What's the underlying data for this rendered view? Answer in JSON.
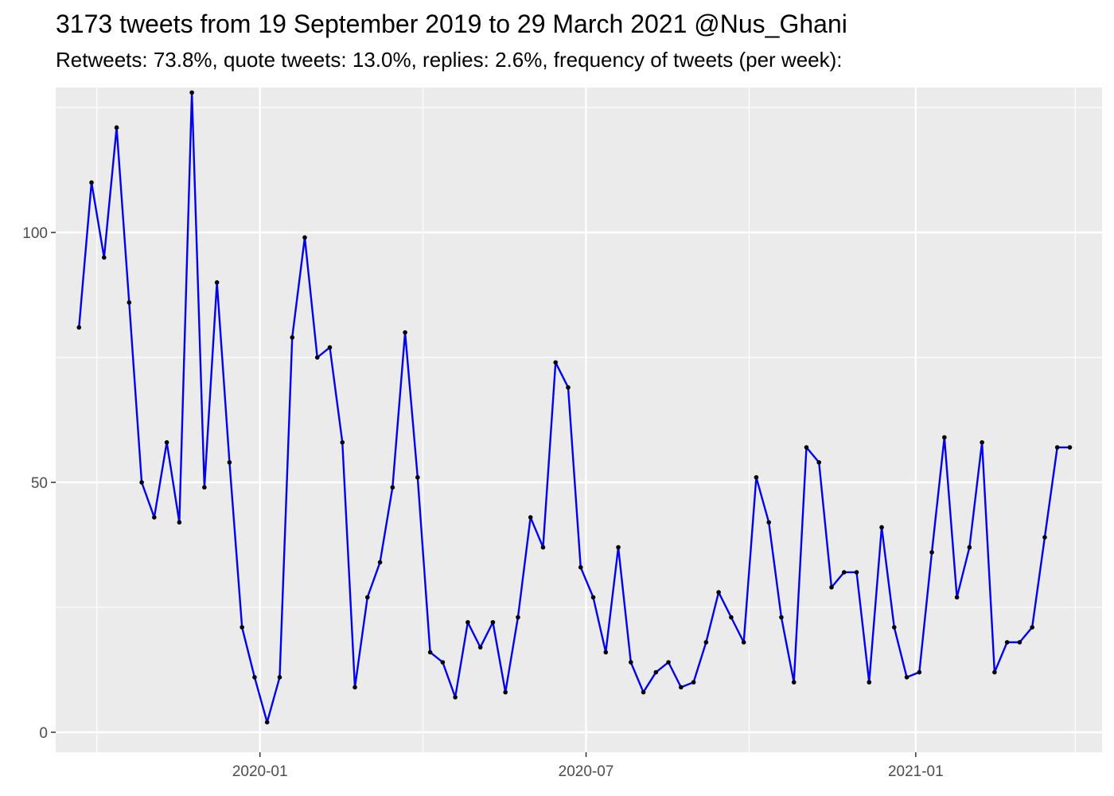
{
  "chart_data": {
    "type": "line",
    "title": "3173 tweets from 19 September 2019 to 29 March 2021 @Nus_Ghani",
    "subtitle": "Retweets: 73.8%, quote tweets: 13.0%, replies: 2.6%, frequency of tweets (per week):",
    "xlabel": "",
    "ylabel": "",
    "xlim": [
      "2019-09-09",
      "2021-04-15"
    ],
    "ylim": [
      -4,
      129
    ],
    "x_ticks": [
      {
        "value": "2020-01-01",
        "label": "2020-01"
      },
      {
        "value": "2020-07-01",
        "label": "2020-07"
      },
      {
        "value": "2021-01-01",
        "label": "2021-01"
      }
    ],
    "y_ticks": [
      {
        "value": 0,
        "label": "0"
      },
      {
        "value": 50,
        "label": "50"
      },
      {
        "value": 100,
        "label": "100"
      }
    ],
    "grid": true,
    "colors": {
      "panel": "#ebebeb",
      "grid_major": "#ffffff",
      "line": "#0000ee",
      "point": "#000000",
      "tick_text": "#4d4d4d"
    },
    "series": [
      {
        "x": [
          "2019-09-22",
          "2019-09-29",
          "2019-10-06",
          "2019-10-13",
          "2019-10-20",
          "2019-10-27",
          "2019-11-03",
          "2019-11-10",
          "2019-11-17",
          "2019-11-24",
          "2019-12-01",
          "2019-12-08",
          "2019-12-15",
          "2019-12-22",
          "2019-12-29",
          "2020-01-05",
          "2020-01-12",
          "2020-01-19",
          "2020-01-26",
          "2020-02-02",
          "2020-02-09",
          "2020-02-16",
          "2020-02-23",
          "2020-03-01",
          "2020-03-08",
          "2020-03-15",
          "2020-03-22",
          "2020-03-29",
          "2020-04-05",
          "2020-04-12",
          "2020-04-19",
          "2020-04-26",
          "2020-05-03",
          "2020-05-10",
          "2020-05-17",
          "2020-05-24",
          "2020-05-31",
          "2020-06-07",
          "2020-06-14",
          "2020-06-21",
          "2020-06-28",
          "2020-07-05",
          "2020-07-12",
          "2020-07-19",
          "2020-07-26",
          "2020-08-02",
          "2020-08-09",
          "2020-08-16",
          "2020-08-23",
          "2020-08-30",
          "2020-09-06",
          "2020-09-13",
          "2020-09-20",
          "2020-09-27",
          "2020-10-04",
          "2020-10-11",
          "2020-10-18",
          "2020-10-25",
          "2020-11-01",
          "2020-11-08",
          "2020-11-15",
          "2020-11-22",
          "2020-11-29",
          "2020-12-06",
          "2020-12-13",
          "2020-12-20",
          "2020-12-27",
          "2021-01-03",
          "2021-01-10",
          "2021-01-17",
          "2021-01-24",
          "2021-01-31",
          "2021-02-07",
          "2021-02-14",
          "2021-02-21",
          "2021-02-28",
          "2021-03-07",
          "2021-03-14",
          "2021-03-21",
          "2021-03-28"
        ],
        "values": [
          81,
          110,
          95,
          121,
          86,
          50,
          43,
          58,
          42,
          128,
          49,
          90,
          54,
          21,
          11,
          2,
          11,
          79,
          99,
          75,
          77,
          58,
          9,
          27,
          34,
          49,
          80,
          51,
          16,
          14,
          7,
          22,
          17,
          22,
          8,
          23,
          43,
          37,
          74,
          69,
          33,
          27,
          16,
          37,
          14,
          8,
          12,
          14,
          9,
          10,
          18,
          28,
          23,
          18,
          51,
          42,
          23,
          10,
          57,
          54,
          29,
          32,
          32,
          10,
          41,
          21,
          11,
          12,
          36,
          59,
          27,
          37,
          58,
          12,
          18,
          18,
          21,
          39,
          57,
          57
        ]
      }
    ]
  }
}
